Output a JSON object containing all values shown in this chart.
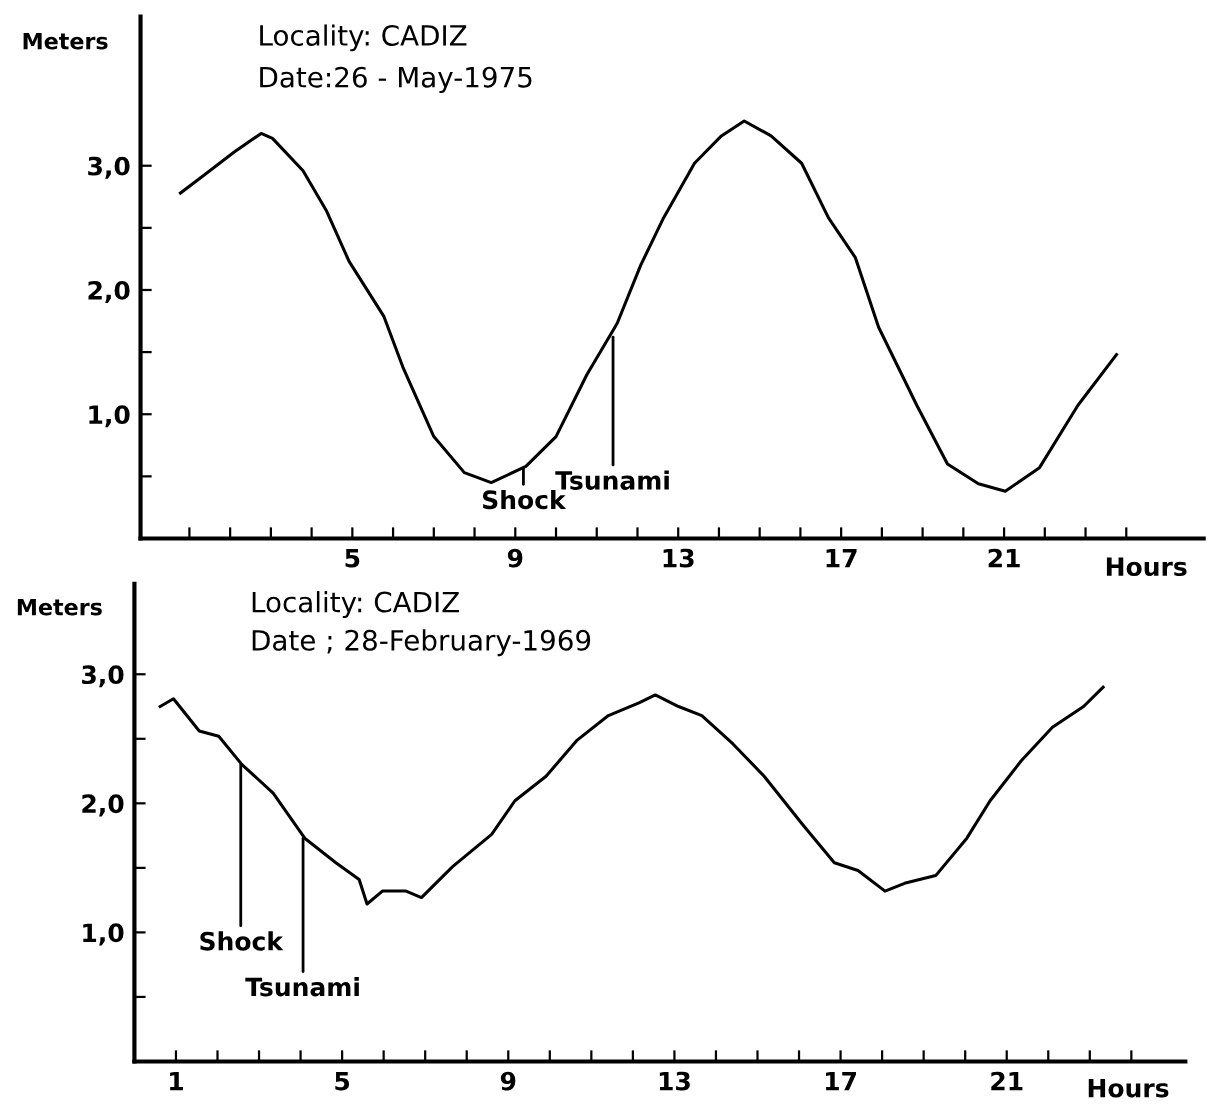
{
  "chart_data": [
    {
      "type": "line",
      "title": "Locality: CADIZ",
      "subtitle": "Date:26 - May-1975",
      "xlabel": "Hours",
      "ylabel": "Meters",
      "series": [
        {
          "color": "#000000",
          "x": [
            0.78,
            1.34,
            2.1,
            2.76,
            3.04,
            3.79,
            4.36,
            4.92,
            5.77,
            6.24,
            7.0,
            7.75,
            8.41,
            9.26,
            10.0,
            10.76,
            11.5,
            12.08,
            12.64,
            13.4,
            14.06,
            14.62,
            15.28,
            16.03,
            16.69,
            17.35,
            17.92,
            18.86,
            19.61,
            20.37,
            21.03,
            21.87,
            22.81,
            23.76
          ],
          "values": [
            2.78,
            2.92,
            3.11,
            3.26,
            3.22,
            2.96,
            2.64,
            2.23,
            1.79,
            1.38,
            0.82,
            0.53,
            0.45,
            0.58,
            0.82,
            1.32,
            1.73,
            2.2,
            2.58,
            3.02,
            3.24,
            3.36,
            3.24,
            3.02,
            2.58,
            2.26,
            1.7,
            1.07,
            0.6,
            0.44,
            0.38,
            0.57,
            1.07,
            1.48
          ]
        }
      ],
      "annotations": [
        {
          "text": "Shock",
          "x": 9.2,
          "y": 0.57
        },
        {
          "text": "Tsunami",
          "x": 11.4,
          "y": 1.62
        }
      ],
      "xlim": [
        -0.2,
        25.9
      ],
      "ylim": [
        0,
        4.2
      ],
      "xticks": [
        {
          "value": 1,
          "label": null
        },
        {
          "value": 2,
          "label": null
        },
        {
          "value": 3,
          "label": null
        },
        {
          "value": 4,
          "label": null
        },
        5,
        {
          "value": 6,
          "label": null
        },
        {
          "value": 7,
          "label": null
        },
        {
          "value": 8,
          "label": null
        },
        9,
        {
          "value": 10,
          "label": null
        },
        {
          "value": 11,
          "label": null
        },
        {
          "value": 12,
          "label": null
        },
        13,
        {
          "value": 14,
          "label": null
        },
        {
          "value": 15,
          "label": null
        },
        {
          "value": 16,
          "label": null
        },
        17,
        {
          "value": 18,
          "label": null
        },
        {
          "value": 19,
          "label": null
        },
        {
          "value": 20,
          "label": null
        },
        21,
        {
          "value": 22,
          "label": null
        },
        {
          "value": 23,
          "label": null
        },
        {
          "value": 24,
          "label": null
        }
      ],
      "yticks": [
        {
          "value": 0.5,
          "label": null
        },
        {
          "value": 1,
          "label": "1,0"
        },
        {
          "value": 1.5,
          "label": null
        },
        {
          "value": 2,
          "label": "2,0"
        },
        {
          "value": 2.5,
          "label": null
        },
        {
          "value": 3,
          "label": "3,0"
        }
      ],
      "grid": false,
      "legend": false,
      "marker": "none",
      "line_style": "solid"
    },
    {
      "type": "line",
      "title": "Locality: CADIZ",
      "subtitle": "Date ; 28-February-1969",
      "xlabel": "Hours",
      "ylabel": "Meters",
      "series": [
        {
          "color": "#000000",
          "x": [
            0.62,
            0.94,
            1.56,
            2.03,
            2.59,
            3.34,
            4.1,
            4.85,
            5.41,
            5.6,
            5.97,
            6.54,
            6.91,
            7.66,
            8.6,
            9.16,
            9.91,
            10.66,
            11.41,
            12.16,
            12.54,
            13.1,
            13.66,
            14.41,
            15.16,
            16.1,
            16.85,
            17.42,
            18.07,
            18.54,
            19.29,
            20.04,
            20.6,
            21.35,
            22.1,
            22.85,
            23.32
          ],
          "values": [
            2.75,
            2.81,
            2.56,
            2.52,
            2.3,
            2.08,
            1.73,
            1.54,
            1.41,
            1.22,
            1.32,
            1.32,
            1.27,
            1.51,
            1.76,
            2.02,
            2.21,
            2.49,
            2.68,
            2.78,
            2.84,
            2.75,
            2.68,
            2.46,
            2.21,
            1.83,
            1.54,
            1.48,
            1.32,
            1.38,
            1.44,
            1.73,
            2.02,
            2.33,
            2.59,
            2.75,
            2.9
          ]
        }
      ],
      "annotations": [
        {
          "text": "Shock",
          "x": 2.56,
          "y": 2.3
        },
        {
          "text": "Tsunami",
          "x": 4.06,
          "y": 1.73
        }
      ],
      "xlim": [
        0,
        25.3
      ],
      "ylim": [
        0,
        3.7
      ],
      "xticks": [
        1,
        {
          "value": 2,
          "label": null
        },
        {
          "value": 3,
          "label": null
        },
        {
          "value": 4,
          "label": null
        },
        5,
        {
          "value": 6,
          "label": null
        },
        {
          "value": 7,
          "label": null
        },
        {
          "value": 8,
          "label": null
        },
        9,
        {
          "value": 10,
          "label": null
        },
        {
          "value": 11,
          "label": null
        },
        {
          "value": 12,
          "label": null
        },
        13,
        {
          "value": 14,
          "label": null
        },
        {
          "value": 15,
          "label": null
        },
        {
          "value": 16,
          "label": null
        },
        17,
        {
          "value": 18,
          "label": null
        },
        {
          "value": 19,
          "label": null
        },
        {
          "value": 20,
          "label": null
        },
        21,
        {
          "value": 22,
          "label": null
        },
        {
          "value": 23,
          "label": null
        },
        {
          "value": 24,
          "label": null
        }
      ],
      "yticks": [
        {
          "value": 0.5,
          "label": null
        },
        {
          "value": 1,
          "label": "1,0"
        },
        {
          "value": 1.5,
          "label": null
        },
        {
          "value": 2,
          "label": "2,0"
        },
        {
          "value": 2.5,
          "label": null
        },
        {
          "value": 3,
          "label": "3,0"
        }
      ],
      "grid": false,
      "legend": false,
      "marker": "none",
      "line_style": "solid"
    }
  ]
}
